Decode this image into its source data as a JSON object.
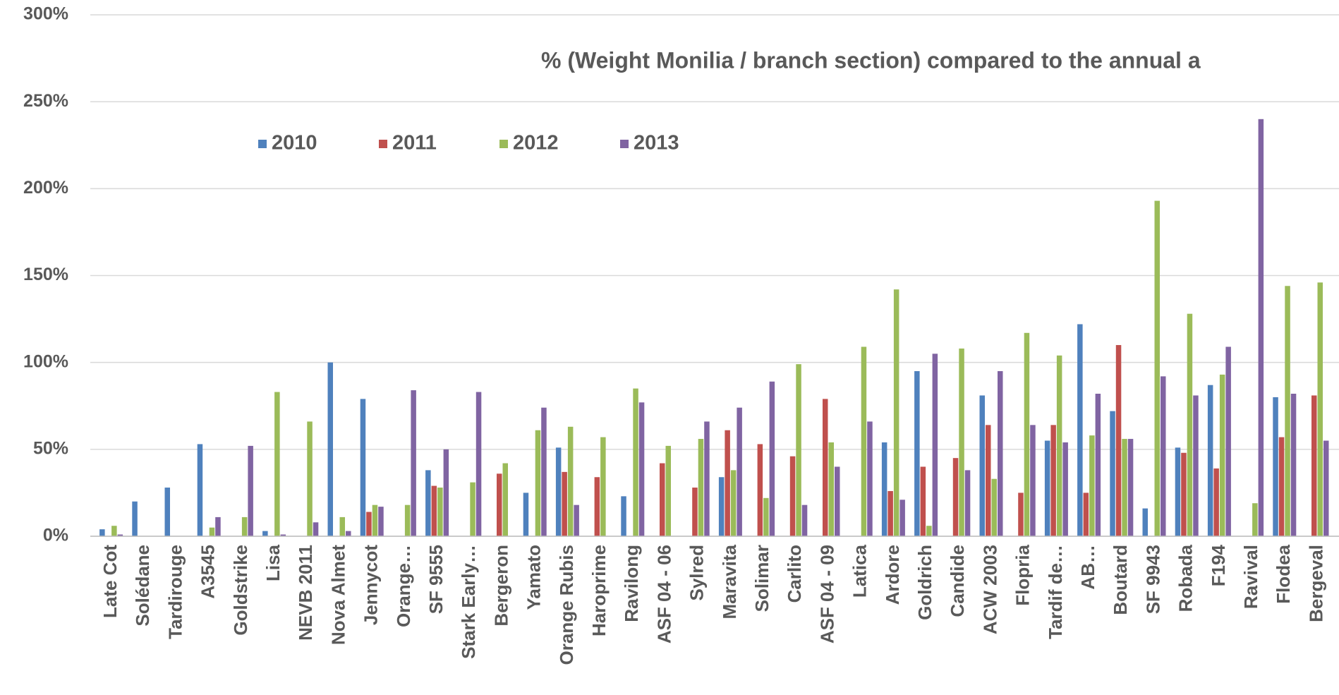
{
  "chart_data": {
    "type": "bar",
    "title": "% (Weight Monilia / branch section) compared to the annual a",
    "categories": [
      "Late Cot",
      "Solédane",
      "Tardirouge",
      "A3545",
      "Goldstrike",
      "Lisa",
      "NEVB 2011",
      "Nova Almet",
      "Jennycot",
      "Orange…",
      "SF 9555",
      "Stark Early…",
      "Bergeron",
      "Yamato",
      "Orange Rubis",
      "Haroprime",
      "Ravilong",
      "ASF 04 - 06",
      "Sylred",
      "Maravita",
      "Solimar",
      "Carlito",
      "ASF 04 - 09",
      "Latica",
      "Ardore",
      "Goldrich",
      "Candide",
      "ACW 2003",
      "Flopria",
      "Tardif de…",
      "AB…",
      "Boutard",
      "SF 9943",
      "Robada",
      "F194",
      "Ravival",
      "Flodea",
      "Bergeval"
    ],
    "series": [
      {
        "name": "2010",
        "color": "#4f81bd",
        "values": [
          4,
          20,
          28,
          53,
          null,
          3,
          null,
          100,
          79,
          null,
          38,
          null,
          null,
          25,
          51,
          null,
          23,
          null,
          null,
          34,
          null,
          null,
          null,
          null,
          54,
          95,
          null,
          81,
          null,
          55,
          122,
          72,
          16,
          51,
          87,
          null,
          80,
          null
        ]
      },
      {
        "name": "2011",
        "color": "#c0504d",
        "values": [
          null,
          null,
          null,
          null,
          null,
          null,
          null,
          null,
          14,
          null,
          29,
          null,
          36,
          null,
          37,
          34,
          null,
          42,
          28,
          61,
          53,
          46,
          79,
          null,
          26,
          40,
          45,
          64,
          25,
          64,
          25,
          110,
          null,
          48,
          39,
          null,
          57,
          81
        ]
      },
      {
        "name": "2012",
        "color": "#9bbb59",
        "values": [
          6,
          null,
          null,
          5,
          11,
          83,
          66,
          11,
          18,
          18,
          28,
          31,
          42,
          61,
          63,
          57,
          85,
          52,
          56,
          38,
          22,
          99,
          54,
          109,
          142,
          6,
          108,
          33,
          117,
          104,
          58,
          56,
          193,
          128,
          93,
          19,
          144,
          146
        ]
      },
      {
        "name": "2013",
        "color": "#8064a2",
        "values": [
          1,
          null,
          null,
          11,
          52,
          1,
          8,
          3,
          17,
          84,
          50,
          83,
          null,
          74,
          18,
          null,
          77,
          null,
          66,
          74,
          89,
          18,
          40,
          66,
          21,
          105,
          38,
          95,
          64,
          54,
          82,
          56,
          92,
          81,
          109,
          240,
          82,
          55
        ]
      }
    ],
    "ylim": [
      0,
      300
    ],
    "yticks": [
      {
        "value": 0,
        "label": "0%"
      },
      {
        "value": 50,
        "label": "50%"
      },
      {
        "value": 100,
        "label": "100%"
      },
      {
        "value": 150,
        "label": "150%"
      },
      {
        "value": 200,
        "label": "200%"
      },
      {
        "value": 250,
        "label": "250%"
      },
      {
        "value": 300,
        "label": "300%"
      }
    ],
    "grid": true,
    "legend": "top"
  }
}
